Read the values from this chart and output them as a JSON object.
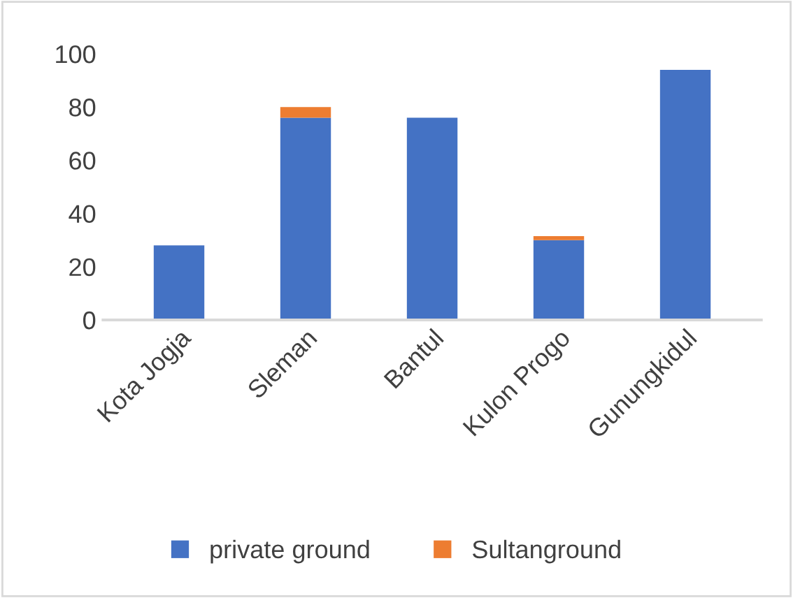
{
  "chart_data": {
    "type": "bar",
    "stacked": true,
    "categories": [
      "Kota Jogja",
      "Sleman",
      "Bantul",
      "Kulon Progo",
      "Gunungkidul"
    ],
    "series": [
      {
        "name": "private ground",
        "color": "#4472c4",
        "values": [
          28,
          76,
          76,
          30,
          94
        ]
      },
      {
        "name": "Sultanground",
        "color": "#ed7d31",
        "values": [
          0,
          4,
          0,
          1.5,
          0
        ]
      }
    ],
    "ylim": [
      0,
      100
    ],
    "yticks": [
      0,
      20,
      40,
      60,
      80,
      100
    ],
    "grid": false,
    "legend": "bottom"
  }
}
